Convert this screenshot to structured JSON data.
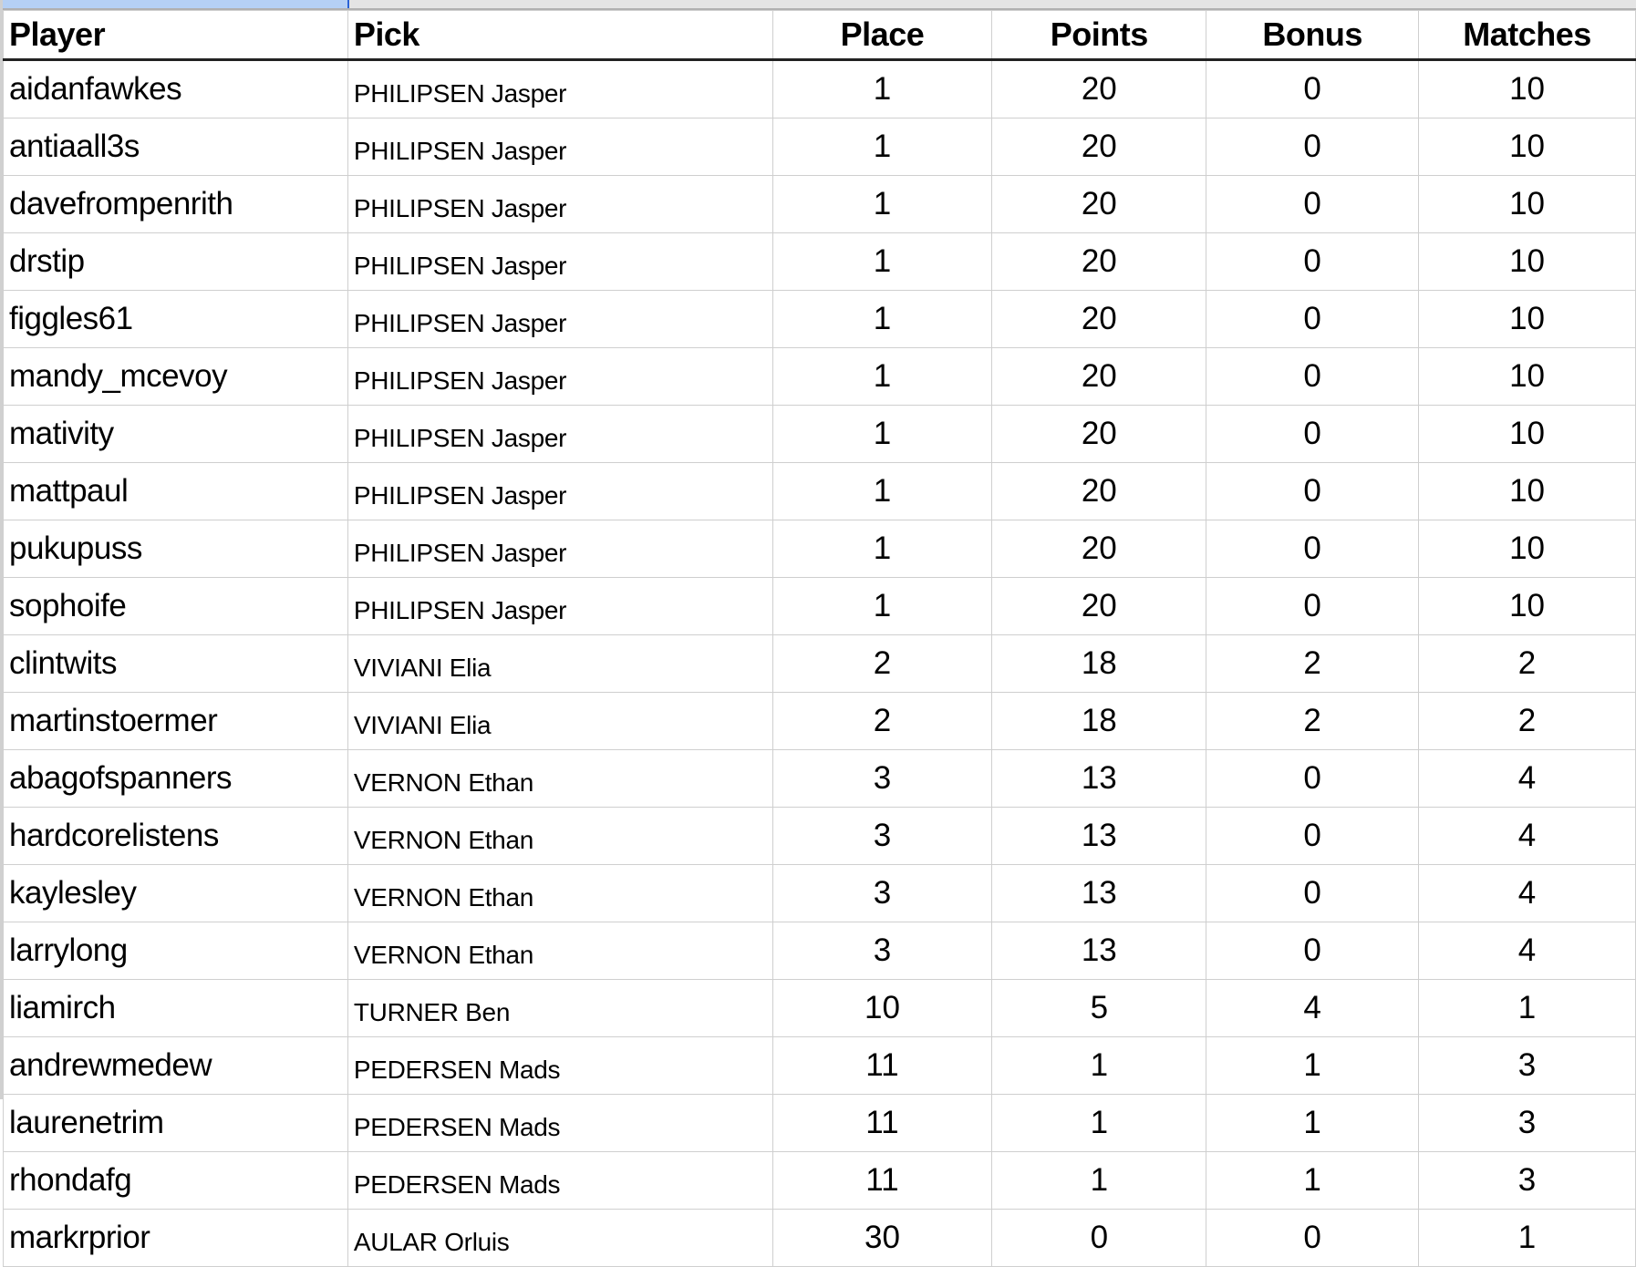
{
  "columns": [
    "Player",
    "Pick",
    "Place",
    "Points",
    "Bonus",
    "Matches"
  ],
  "rows": [
    [
      "aidanfawkes",
      "PHILIPSEN Jasper",
      "1",
      "20",
      "0",
      "10"
    ],
    [
      "antiaall3s",
      "PHILIPSEN Jasper",
      "1",
      "20",
      "0",
      "10"
    ],
    [
      "davefrompenrith",
      "PHILIPSEN Jasper",
      "1",
      "20",
      "0",
      "10"
    ],
    [
      "drstip",
      "PHILIPSEN Jasper",
      "1",
      "20",
      "0",
      "10"
    ],
    [
      "figgles61",
      "PHILIPSEN Jasper",
      "1",
      "20",
      "0",
      "10"
    ],
    [
      "mandy_mcevoy",
      "PHILIPSEN Jasper",
      "1",
      "20",
      "0",
      "10"
    ],
    [
      "mativity",
      "PHILIPSEN Jasper",
      "1",
      "20",
      "0",
      "10"
    ],
    [
      "mattpaul",
      "PHILIPSEN Jasper",
      "1",
      "20",
      "0",
      "10"
    ],
    [
      "pukupuss",
      "PHILIPSEN Jasper",
      "1",
      "20",
      "0",
      "10"
    ],
    [
      "sophoife",
      "PHILIPSEN Jasper",
      "1",
      "20",
      "0",
      "10"
    ],
    [
      "clintwits",
      "VIVIANI Elia",
      "2",
      "18",
      "2",
      "2"
    ],
    [
      "martinstoermer",
      "VIVIANI Elia",
      "2",
      "18",
      "2",
      "2"
    ],
    [
      "abagofspanners",
      "VERNON Ethan",
      "3",
      "13",
      "0",
      "4"
    ],
    [
      "hardcorelistens",
      "VERNON Ethan",
      "3",
      "13",
      "0",
      "4"
    ],
    [
      "kaylesley",
      "VERNON Ethan",
      "3",
      "13",
      "0",
      "4"
    ],
    [
      "larrylong",
      "VERNON Ethan",
      "3",
      "13",
      "0",
      "4"
    ],
    [
      "liamirch",
      "TURNER Ben",
      "10",
      "5",
      "4",
      "1"
    ],
    [
      "andrewmedew",
      "PEDERSEN Mads",
      "11",
      "1",
      "1",
      "3"
    ],
    [
      "laurenetrim",
      "PEDERSEN Mads",
      "11",
      "1",
      "1",
      "3"
    ],
    [
      "rhondafg",
      "PEDERSEN Mads",
      "11",
      "1",
      "1",
      "3"
    ],
    [
      "markrprior",
      "AULAR Orluis",
      "30",
      "0",
      "0",
      "1"
    ]
  ],
  "colors": {
    "selection": "#b5d0f5",
    "selection_border": "#2a62d6",
    "grid": "#cfcfcf"
  }
}
